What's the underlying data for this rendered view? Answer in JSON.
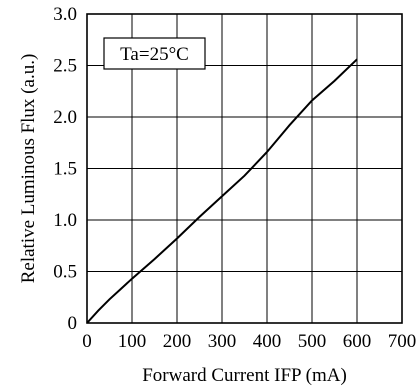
{
  "chart_data": {
    "type": "line",
    "xlabel": "Forward Current  IFP (mA)",
    "ylabel": "Relative Luminous Flux (a.u.)",
    "xlim": [
      0,
      700
    ],
    "ylim": [
      0,
      3.0
    ],
    "x_ticks": [
      0,
      100,
      200,
      300,
      400,
      500,
      600,
      700
    ],
    "y_ticks": [
      0,
      0.5,
      1.0,
      1.5,
      2.0,
      2.5,
      3.0
    ],
    "x_tick_labels": [
      "0",
      "100",
      "200",
      "300",
      "400",
      "500",
      "600",
      "700"
    ],
    "y_tick_labels": [
      "0",
      "0.5",
      "1.0",
      "1.5",
      "2.0",
      "2.5",
      "3.0"
    ],
    "grid": true,
    "annotation": "Ta=25°C",
    "series": [
      {
        "x": [
          0,
          25,
          50,
          75,
          100,
          150,
          200,
          250,
          300,
          350,
          400,
          450,
          500,
          550,
          600
        ],
        "y": [
          0,
          0.12,
          0.23,
          0.33,
          0.43,
          0.62,
          0.82,
          1.03,
          1.23,
          1.43,
          1.66,
          1.92,
          2.16,
          2.35,
          2.56
        ]
      }
    ]
  }
}
